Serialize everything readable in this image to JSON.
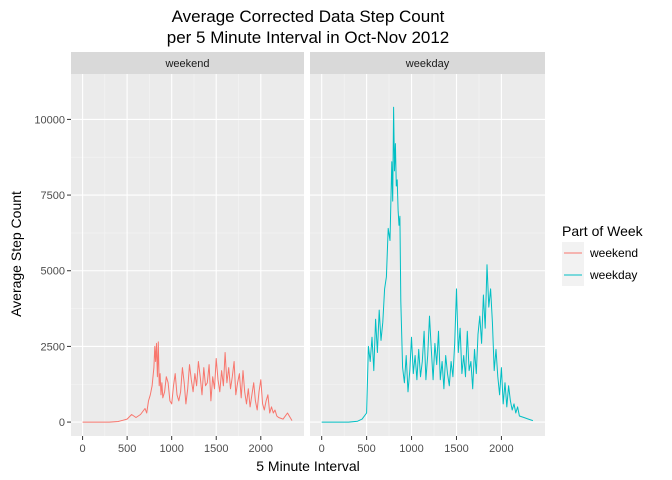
{
  "chart_data": {
    "type": "line",
    "title_lines": [
      "Average Corrected Data Step Count",
      "per 5 Minute Interval in Oct-Nov 2012"
    ],
    "xlabel": "5 Minute Interval",
    "ylabel": "Average Step Count",
    "xlim": [
      -130,
      2485
    ],
    "ylim": [
      -460,
      11500
    ],
    "x_ticks": [
      0,
      500,
      1000,
      1500,
      2000
    ],
    "y_ticks": [
      0,
      2500,
      5000,
      7500,
      10000
    ],
    "grid": true,
    "legend": {
      "title": "Part of Week",
      "position": "right",
      "entries": [
        "weekend",
        "weekday"
      ]
    },
    "colors": {
      "weekend": "#F8766D",
      "weekday": "#00BFC4"
    },
    "panels": [
      {
        "label": "weekend",
        "series": "weekend",
        "x": [
          0,
          100,
          200,
          300,
          400,
          450,
          500,
          550,
          600,
          650,
          700,
          720,
          740,
          760,
          780,
          800,
          810,
          820,
          830,
          840,
          850,
          860,
          870,
          880,
          890,
          900,
          920,
          940,
          960,
          980,
          1000,
          1020,
          1040,
          1060,
          1080,
          1100,
          1120,
          1140,
          1160,
          1180,
          1200,
          1220,
          1240,
          1260,
          1280,
          1300,
          1320,
          1340,
          1360,
          1380,
          1400,
          1420,
          1440,
          1460,
          1480,
          1500,
          1520,
          1540,
          1560,
          1580,
          1600,
          1620,
          1640,
          1660,
          1680,
          1700,
          1720,
          1740,
          1760,
          1780,
          1800,
          1820,
          1840,
          1860,
          1880,
          1900,
          1920,
          1940,
          1960,
          1980,
          2000,
          2020,
          2040,
          2060,
          2080,
          2100,
          2120,
          2140,
          2160,
          2180,
          2200,
          2250,
          2300,
          2350
        ],
        "y": [
          0,
          0,
          0,
          0,
          20,
          60,
          100,
          250,
          150,
          250,
          450,
          300,
          700,
          900,
          1200,
          1800,
          2500,
          2000,
          2600,
          1500,
          2650,
          1200,
          1600,
          900,
          1300,
          800,
          1000,
          1500,
          1300,
          700,
          600,
          1200,
          1600,
          900,
          700,
          1000,
          1800,
          1300,
          600,
          1100,
          1900,
          1400,
          1000,
          1600,
          1200,
          2000,
          1500,
          900,
          1800,
          1200,
          1300,
          1900,
          700,
          1500,
          1100,
          2100,
          1400,
          1000,
          1700,
          1200,
          2300,
          1300,
          1800,
          1100,
          1500,
          2000,
          900,
          1300,
          1600,
          800,
          1700,
          1000,
          600,
          1100,
          500,
          900,
          1300,
          700,
          400,
          1000,
          1400,
          600,
          400,
          700,
          900,
          300,
          500,
          300,
          400,
          200,
          150,
          100,
          300,
          50
        ]
      },
      {
        "label": "weekday",
        "series": "weekday",
        "x": [
          0,
          100,
          200,
          300,
          400,
          450,
          500,
          520,
          540,
          560,
          580,
          600,
          620,
          640,
          660,
          680,
          700,
          720,
          740,
          760,
          780,
          790,
          800,
          810,
          820,
          830,
          840,
          850,
          860,
          870,
          880,
          900,
          920,
          940,
          960,
          980,
          1000,
          1020,
          1040,
          1060,
          1080,
          1100,
          1120,
          1140,
          1160,
          1180,
          1200,
          1220,
          1240,
          1260,
          1280,
          1300,
          1320,
          1340,
          1360,
          1380,
          1400,
          1420,
          1440,
          1460,
          1480,
          1500,
          1520,
          1540,
          1560,
          1580,
          1600,
          1620,
          1640,
          1660,
          1680,
          1700,
          1720,
          1740,
          1760,
          1780,
          1800,
          1820,
          1840,
          1860,
          1880,
          1900,
          1920,
          1940,
          1960,
          1980,
          2000,
          2020,
          2040,
          2060,
          2080,
          2100,
          2120,
          2140,
          2160,
          2180,
          2200,
          2250,
          2300,
          2350
        ],
        "y": [
          0,
          0,
          0,
          0,
          30,
          100,
          300,
          2500,
          2000,
          2800,
          1700,
          3400,
          2300,
          3700,
          2700,
          3300,
          4400,
          4800,
          6400,
          6000,
          8600,
          7300,
          10400,
          8300,
          9200,
          7800,
          8000,
          7000,
          6500,
          6800,
          4000,
          1800,
          1300,
          2200,
          1000,
          1700,
          2800,
          1600,
          2200,
          1400,
          2400,
          1500,
          2000,
          3000,
          1400,
          2200,
          3500,
          2400,
          1400,
          2600,
          1900,
          3000,
          1400,
          2000,
          1100,
          2200,
          1600,
          1200,
          2000,
          1500,
          2600,
          4400,
          2300,
          3100,
          1600,
          2200,
          1500,
          3000,
          1700,
          2000,
          1100,
          2400,
          1600,
          2900,
          3500,
          2600,
          4200,
          3100,
          5200,
          3800,
          4400,
          3300,
          1700,
          2400,
          1500,
          900,
          1800,
          600,
          1300,
          500,
          1200,
          700,
          400,
          600,
          300,
          500,
          200,
          150,
          100,
          50
        ]
      }
    ]
  }
}
